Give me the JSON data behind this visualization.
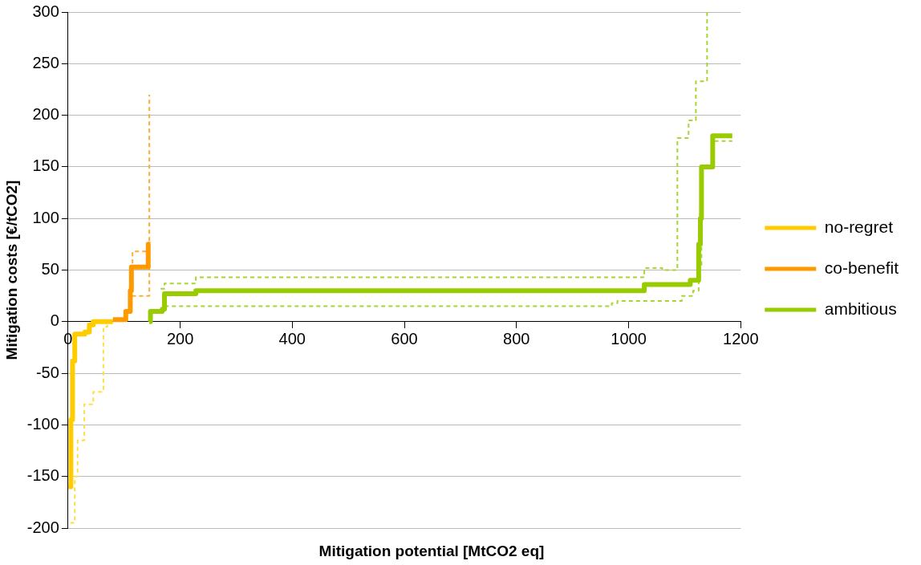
{
  "chart_data": {
    "type": "step",
    "xlabel": "Mitigation potential [MtCO2 eq]",
    "ylabel": "Mitigation costs [€/tCO2]",
    "xlim": [
      0,
      1200
    ],
    "xticks": [
      0,
      200,
      400,
      600,
      800,
      1000,
      1200
    ],
    "ylim": [
      -200,
      300
    ],
    "yticks": [
      -200,
      -150,
      -100,
      -50,
      0,
      50,
      100,
      150,
      200,
      250,
      300
    ],
    "grid": "y",
    "legend": "right",
    "marker": "none",
    "line_style": "solid",
    "series": [
      {
        "name": "no-regret",
        "color": "#ffcc00",
        "x": [
          0,
          5,
          8,
          12,
          30,
          38,
          45,
          80
        ],
        "values": [
          -160,
          -160,
          -95,
          -38,
          -12,
          -10,
          -3,
          0
        ]
      },
      {
        "name": "co-benefit",
        "color": "#ff9900",
        "x": [
          80,
          103,
          111,
          113,
          143,
          147
        ],
        "values": [
          2,
          2,
          10,
          30,
          53,
          75
        ]
      },
      {
        "name": "ambitious",
        "color": "#99cc00",
        "x": [
          145,
          147,
          168,
          172,
          228,
          1028,
          1110,
          1125,
          1128,
          1130,
          1150,
          1185
        ],
        "values": [
          0,
          0,
          10,
          12,
          27,
          30,
          36,
          40,
          75,
          100,
          150,
          180
        ]
      },
      {
        "color": "#ffdd44",
        "line_style": "dashed",
        "x": [
          4,
          12,
          17,
          29,
          45,
          63,
          70,
          80
        ],
        "values": [
          -195,
          -195,
          -150,
          -115,
          -80,
          -68,
          -5,
          0
        ]
      },
      {
        "color": "#ffaa33",
        "line_style": "dashed",
        "x": [
          112,
          115,
          143,
          145
        ],
        "values": [
          30,
          30,
          68,
          68
        ]
      },
      {
        "color": "#ffaa33",
        "line_style": "dashed",
        "x": [
          114,
          145,
          145
        ],
        "values": [
          25,
          25,
          220
        ]
      },
      {
        "color": "#aad433",
        "line_style": "dashed",
        "x": [
          165,
          172,
          228,
          1028,
          1060,
          1087,
          1107,
          1120,
          1140,
          1140
        ],
        "values": [
          32,
          32,
          37,
          43,
          52,
          50,
          178,
          195,
          233,
          300
        ]
      },
      {
        "color": "#aad433",
        "line_style": "dashed",
        "x": [
          165,
          170,
          970,
          980,
          1095,
          1115,
          1125,
          1130,
          1150,
          1185
        ],
        "values": [
          12,
          12,
          15,
          18,
          20,
          25,
          30,
          55,
          150,
          175
        ]
      }
    ]
  }
}
